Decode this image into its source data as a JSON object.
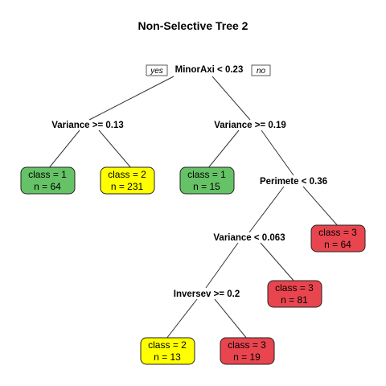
{
  "title": "Non-Selective Tree 2",
  "colors": {
    "class1": "#66c266",
    "class2": "#ffff00",
    "class3": "#e8454f"
  },
  "branch_labels": {
    "yes": "yes",
    "no": "no"
  },
  "splits": {
    "root": "MinorAxi < 0.23",
    "left": "Variance >= 0.13",
    "right": "Variance >= 0.19",
    "right_right": "Perimete < 0.36",
    "rr_left": "Variance < 0.063",
    "rrl_left": "Inversev >= 0.2"
  },
  "leaves": {
    "leaf_a": {
      "class": "class =  1",
      "n": "n =  64",
      "color_key": "class1"
    },
    "leaf_b": {
      "class": "class =  2",
      "n": "n =  231",
      "color_key": "class2"
    },
    "leaf_c": {
      "class": "class =  1",
      "n": "n =  15",
      "color_key": "class1"
    },
    "leaf_d": {
      "class": "class =  3",
      "n": "n =  64",
      "color_key": "class3"
    },
    "leaf_e": {
      "class": "class =  3",
      "n": "n =  81",
      "color_key": "class3"
    },
    "leaf_f": {
      "class": "class =  2",
      "n": "n =  13",
      "color_key": "class2"
    },
    "leaf_g": {
      "class": "class =  3",
      "n": "n =  19",
      "color_key": "class3"
    }
  }
}
